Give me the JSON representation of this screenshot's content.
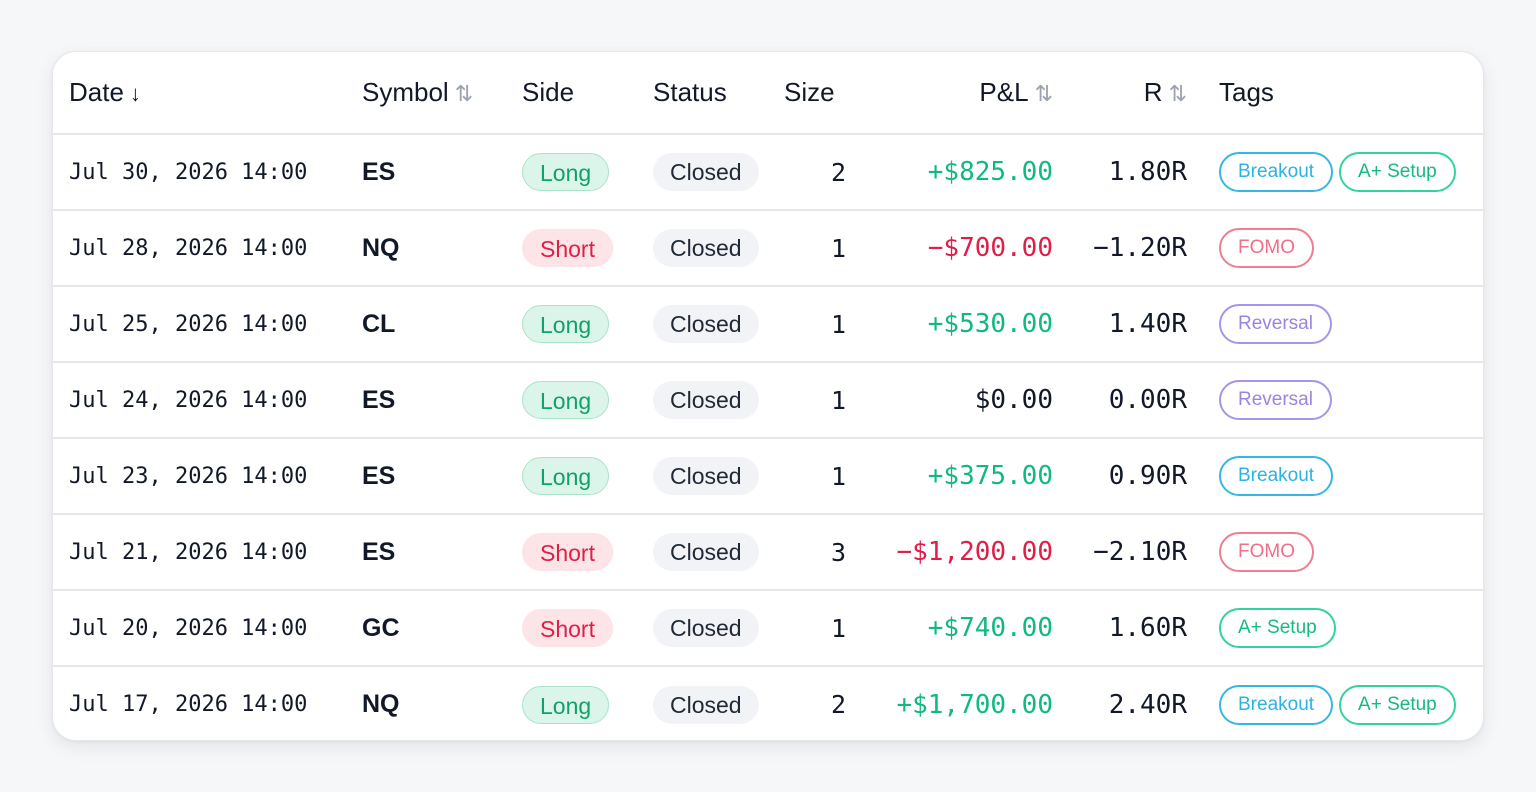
{
  "colors": {
    "positive": "#10b981",
    "negative": "#e11d48",
    "long_bg": "#dcf5ea",
    "short_bg": "#fde4e6",
    "tag_breakout": "#37b6e6",
    "tag_asetup": "#34d399",
    "tag_fomo": "#f07d92",
    "tag_reversal": "#a894e8"
  },
  "table": {
    "headers": {
      "date": "Date",
      "date_sort_icon": "↓",
      "symbol": "Symbol",
      "symbol_sort_icon": "⇅",
      "side": "Side",
      "status": "Status",
      "size": "Size",
      "pnl": "P&L",
      "pnl_sort_icon": "⇅",
      "r": "R",
      "r_sort_icon": "⇅",
      "tags": "Tags"
    },
    "rows": [
      {
        "date": "Jul 30, 2026 14:00",
        "symbol": "ES",
        "side": "Long",
        "status": "Closed",
        "size": "2",
        "pnl": "+$825.00",
        "pnl_sign": "pos",
        "r": "1.80R",
        "tags": [
          {
            "label": "Breakout",
            "kind": "breakout"
          },
          {
            "label": "A+ Setup",
            "kind": "asetup"
          }
        ]
      },
      {
        "date": "Jul 28, 2026 14:00",
        "symbol": "NQ",
        "side": "Short",
        "status": "Closed",
        "size": "1",
        "pnl": "−$700.00",
        "pnl_sign": "neg",
        "r": "−1.20R",
        "tags": [
          {
            "label": "FOMO",
            "kind": "fomo"
          }
        ]
      },
      {
        "date": "Jul 25, 2026 14:00",
        "symbol": "CL",
        "side": "Long",
        "status": "Closed",
        "size": "1",
        "pnl": "+$530.00",
        "pnl_sign": "pos",
        "r": "1.40R",
        "tags": [
          {
            "label": "Reversal",
            "kind": "reversal"
          }
        ]
      },
      {
        "date": "Jul 24, 2026 14:00",
        "symbol": "ES",
        "side": "Long",
        "status": "Closed",
        "size": "1",
        "pnl": "$0.00",
        "pnl_sign": "zero",
        "r": "0.00R",
        "tags": [
          {
            "label": "Reversal",
            "kind": "reversal"
          }
        ]
      },
      {
        "date": "Jul 23, 2026 14:00",
        "symbol": "ES",
        "side": "Long",
        "status": "Closed",
        "size": "1",
        "pnl": "+$375.00",
        "pnl_sign": "pos",
        "r": "0.90R",
        "tags": [
          {
            "label": "Breakout",
            "kind": "breakout"
          }
        ]
      },
      {
        "date": "Jul 21, 2026 14:00",
        "symbol": "ES",
        "side": "Short",
        "status": "Closed",
        "size": "3",
        "pnl": "−$1,200.00",
        "pnl_sign": "neg",
        "r": "−2.10R",
        "tags": [
          {
            "label": "FOMO",
            "kind": "fomo"
          }
        ]
      },
      {
        "date": "Jul 20, 2026 14:00",
        "symbol": "GC",
        "side": "Short",
        "status": "Closed",
        "size": "1",
        "pnl": "+$740.00",
        "pnl_sign": "pos",
        "r": "1.60R",
        "tags": [
          {
            "label": "A+ Setup",
            "kind": "asetup"
          }
        ]
      },
      {
        "date": "Jul 17, 2026 14:00",
        "symbol": "NQ",
        "side": "Long",
        "status": "Closed",
        "size": "2",
        "pnl": "+$1,700.00",
        "pnl_sign": "pos",
        "r": "2.40R",
        "tags": [
          {
            "label": "Breakout",
            "kind": "breakout"
          },
          {
            "label": "A+ Setup",
            "kind": "asetup"
          }
        ]
      }
    ]
  }
}
